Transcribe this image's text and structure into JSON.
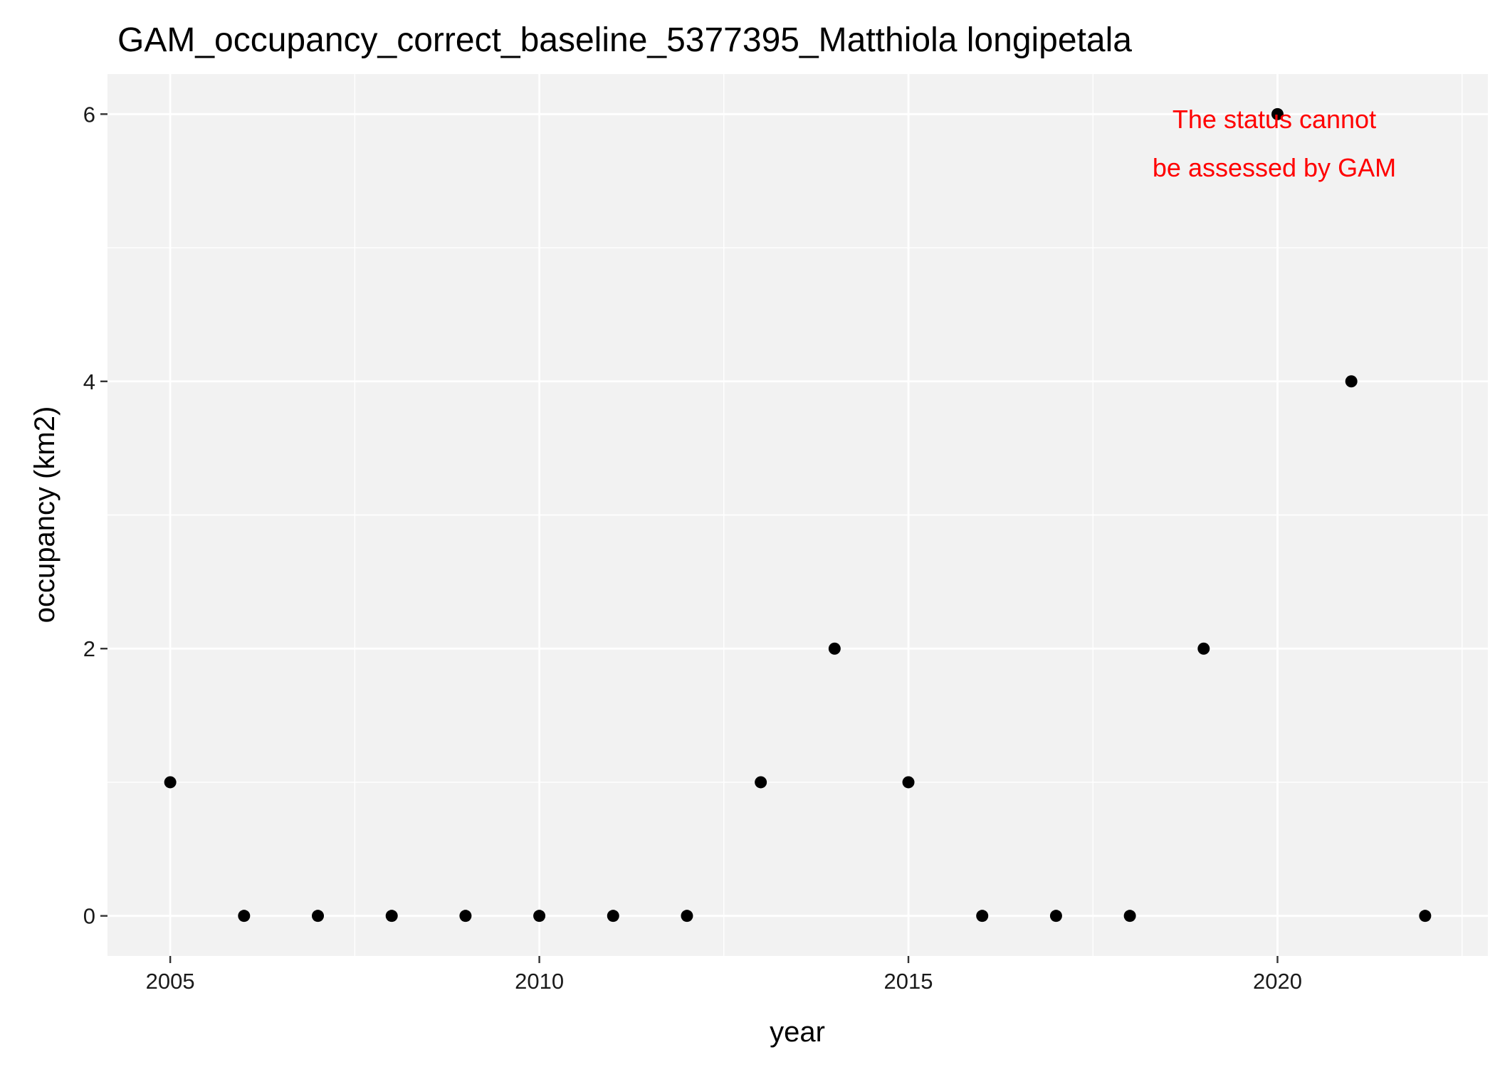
{
  "chart_data": {
    "type": "scatter",
    "title": "GAM_occupancy_correct_baseline_5377395_Matthiola longipetala",
    "xlabel": "year",
    "ylabel": "occupancy (km2)",
    "xlim": [
      2004.15,
      2022.85
    ],
    "ylim": [
      -0.3,
      6.3
    ],
    "x_ticks": [
      2005,
      2010,
      2015,
      2020
    ],
    "x_tick_labels": [
      "2005",
      "2010",
      "2015",
      "2020"
    ],
    "x_minor_ticks": [
      2007.5,
      2012.5,
      2017.5,
      2022.5
    ],
    "y_ticks": [
      0,
      2,
      4,
      6
    ],
    "y_tick_labels": [
      "0",
      "2",
      "4",
      "6"
    ],
    "y_minor_ticks": [
      1,
      3,
      5
    ],
    "grid": true,
    "panel_background": "#f2f2f2",
    "grid_color": "#ffffff",
    "point_color": "#000000",
    "x": [
      2005,
      2006,
      2007,
      2008,
      2009,
      2010,
      2011,
      2012,
      2013,
      2014,
      2015,
      2016,
      2017,
      2018,
      2019,
      2020,
      2021,
      2022
    ],
    "y": [
      1,
      0,
      0,
      0,
      0,
      0,
      0,
      0,
      1,
      2,
      1,
      0,
      0,
      0,
      2,
      6,
      4,
      0
    ],
    "annotation": {
      "lines": [
        "The status cannot",
        "be assessed by GAM"
      ],
      "color": "#ff0000"
    }
  }
}
